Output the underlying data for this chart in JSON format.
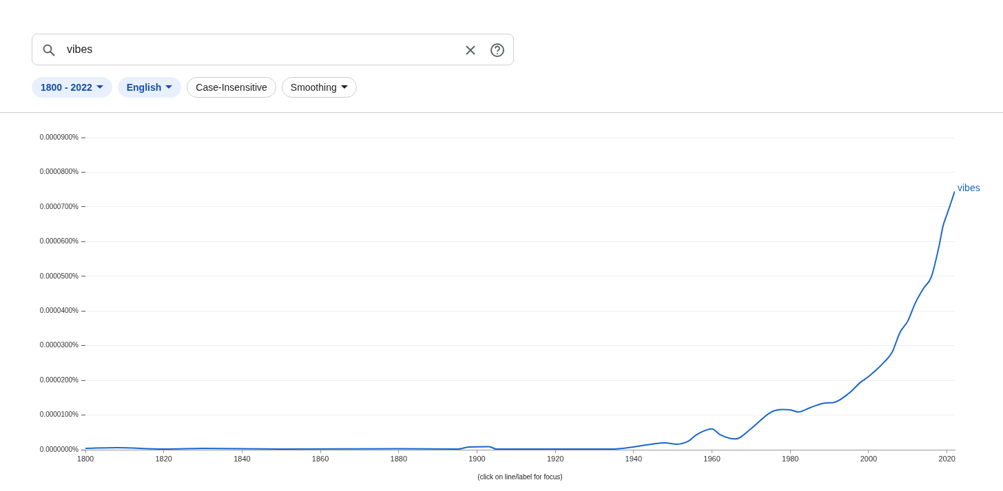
{
  "chart_data": {
    "type": "line",
    "x": [
      1800,
      1808,
      1820,
      1830,
      1850,
      1880,
      1895,
      1898,
      1903,
      1905,
      1930,
      1935,
      1940,
      1945,
      1948,
      1951,
      1954,
      1956,
      1960,
      1962,
      1966,
      1970,
      1975,
      1978,
      1980,
      1982,
      1985,
      1989,
      1991,
      1995,
      1998,
      2000,
      2004,
      2006,
      2008,
      2010,
      2012,
      2014,
      2016,
      2018,
      2019,
      2020,
      2022
    ],
    "series": [
      {
        "name": "vibes",
        "color": "#1a66cc",
        "values": [
          4e-07,
          6e-07,
          2e-07,
          4e-07,
          2e-07,
          3e-07,
          2e-07,
          8e-07,
          9e-07,
          2e-07,
          2e-07,
          2e-07,
          8e-07,
          1.7e-06,
          2e-06,
          1.6e-06,
          2.5e-06,
          4.3e-06,
          6e-06,
          4.4e-06,
          3.1e-06,
          6.1e-06,
          1.08e-05,
          1.16e-05,
          1.15e-05,
          1.09e-05,
          1.21e-05,
          1.35e-05,
          1.36e-05,
          1.63e-05,
          1.95e-05,
          2.11e-05,
          2.53e-05,
          2.81e-05,
          3.38e-05,
          3.71e-05,
          4.25e-05,
          4.65e-05,
          4.98e-05,
          5.88e-05,
          6.45e-05,
          6.78e-05,
          7.45e-05
        ]
      }
    ],
    "xlim": [
      1800,
      2022
    ],
    "xticks": [
      1800,
      1820,
      1840,
      1860,
      1880,
      1900,
      1920,
      1940,
      1960,
      1980,
      2000,
      2020
    ],
    "ylim": [
      0,
      9e-05
    ],
    "yticks": [
      {
        "value": 0,
        "label": "0.0000000%"
      },
      {
        "value": 1e-05,
        "label": "0.0000100%"
      },
      {
        "value": 2e-05,
        "label": "0.0000200%"
      },
      {
        "value": 3e-05,
        "label": "0.0000300%"
      },
      {
        "value": 4e-05,
        "label": "0.0000400%"
      },
      {
        "value": 5e-05,
        "label": "0.0000500%"
      },
      {
        "value": 6e-05,
        "label": "0.0000600%"
      },
      {
        "value": 7e-05,
        "label": "0.0000700%"
      },
      {
        "value": 8e-05,
        "label": "0.0000800%"
      },
      {
        "value": 9e-05,
        "label": "0.0000900%"
      }
    ],
    "grid": "y",
    "legend": false,
    "marker": "none",
    "line_style": "solid",
    "annotations": [
      "vibes",
      "1800 - 2022",
      "English",
      "Case-Insensitive",
      "Smoothing",
      "(click on line/label for focus)"
    ]
  }
}
